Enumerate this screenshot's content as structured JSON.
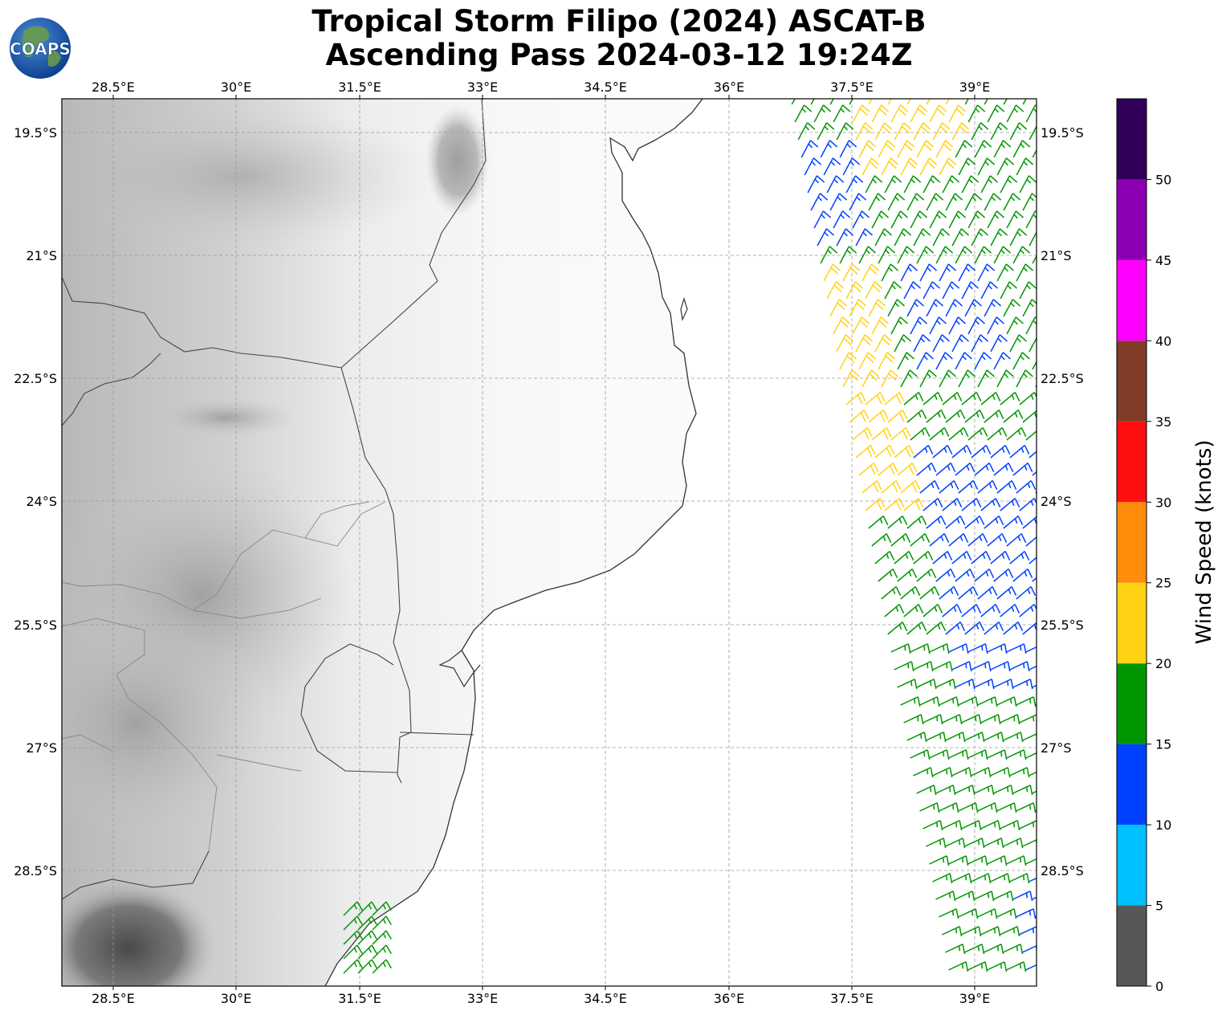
{
  "header": {
    "title_line1": "Tropical Storm Filipo (2024) ASCAT-B",
    "title_line2": "Ascending Pass 2024-03-12 19:24Z",
    "logo_text": "COAPS"
  },
  "map": {
    "lon_ticks": [
      "28.5°E",
      "30°E",
      "31.5°E",
      "33°E",
      "34.5°E",
      "36°E",
      "37.5°E",
      "39°E"
    ],
    "lat_ticks": [
      "19.5°S",
      "21°S",
      "22.5°S",
      "24°S",
      "25.5°S",
      "27°S",
      "28.5°S"
    ],
    "lon_range": [
      27.875,
      39.75
    ],
    "lat_range": [
      -29.9,
      -19.1
    ],
    "background": "grayscale terrain",
    "gridlines": true
  },
  "colorbar": {
    "label": "Wind Speed (knots)",
    "ticks": [
      "0",
      "5",
      "10",
      "15",
      "20",
      "25",
      "30",
      "35",
      "40",
      "45",
      "50"
    ],
    "bins": [
      {
        "min": 0,
        "max": 5,
        "color": "#575757"
      },
      {
        "min": 5,
        "max": 10,
        "color": "#00bfff"
      },
      {
        "min": 10,
        "max": 15,
        "color": "#0040ff"
      },
      {
        "min": 15,
        "max": 20,
        "color": "#009600"
      },
      {
        "min": 20,
        "max": 25,
        "color": "#ffd214"
      },
      {
        "min": 25,
        "max": 30,
        "color": "#ff8c0a"
      },
      {
        "min": 30,
        "max": 35,
        "color": "#ff0f0f"
      },
      {
        "min": 35,
        "max": 40,
        "color": "#823c28"
      },
      {
        "min": 40,
        "max": 45,
        "color": "#ff00ff"
      },
      {
        "min": 45,
        "max": 50,
        "color": "#8c00b4"
      },
      {
        "min": 50,
        "max": 55,
        "color": "#32005a"
      }
    ]
  }
}
